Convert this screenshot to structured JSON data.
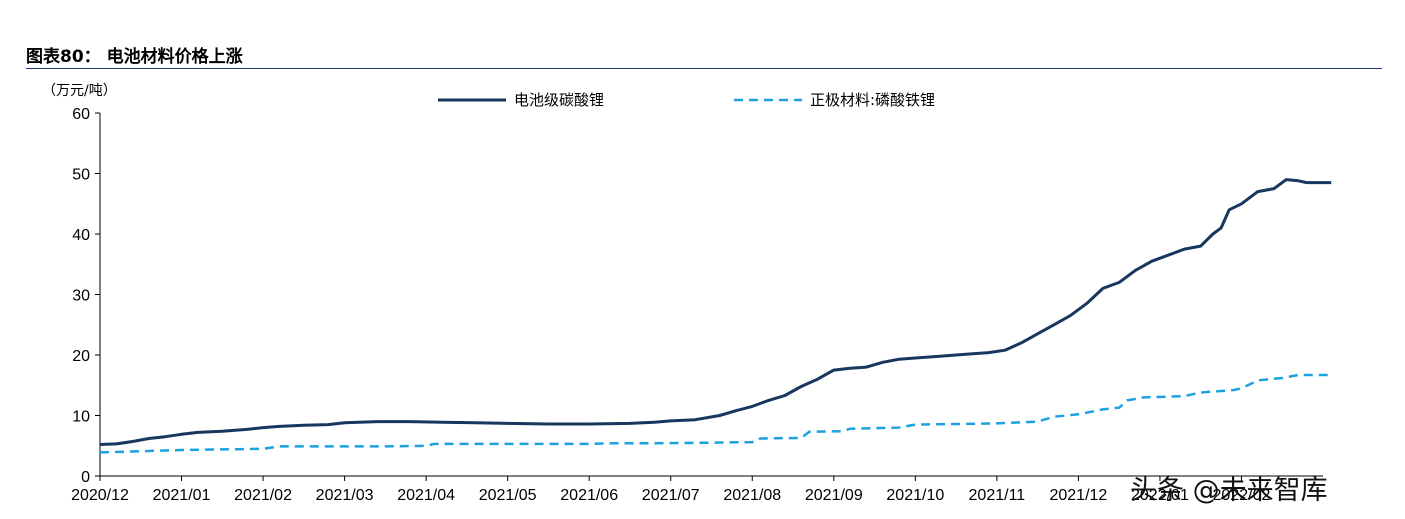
{
  "figure": {
    "title": "图表80：  电池材料价格上涨",
    "watermark": "头条 @未来智库"
  },
  "chart_data": {
    "type": "line",
    "ylabel": "（万元/吨）",
    "ylim": [
      0,
      60
    ],
    "yticks": [
      0,
      10,
      20,
      30,
      40,
      50,
      60
    ],
    "xlim": [
      0,
      15
    ],
    "x_tick_labels": [
      "2020/12",
      "2021/01",
      "2021/02",
      "2021/03",
      "2021/04",
      "2021/05",
      "2021/06",
      "2021/07",
      "2021/08",
      "2021/09",
      "2021/10",
      "2021/11",
      "2021/12",
      "2022/01",
      "2022/02"
    ],
    "legend_position": "top-center",
    "grid": false,
    "series": [
      {
        "name": "电池级碳酸锂",
        "color": "#17375e",
        "style": "solid",
        "points": [
          [
            0,
            5.2
          ],
          [
            0.2,
            5.3
          ],
          [
            0.4,
            5.7
          ],
          [
            0.6,
            6.2
          ],
          [
            0.8,
            6.5
          ],
          [
            1.0,
            6.9
          ],
          [
            1.2,
            7.2
          ],
          [
            1.5,
            7.4
          ],
          [
            1.8,
            7.7
          ],
          [
            2.0,
            8.0
          ],
          [
            2.2,
            8.2
          ],
          [
            2.5,
            8.4
          ],
          [
            2.8,
            8.5
          ],
          [
            3.0,
            8.8
          ],
          [
            3.4,
            9.0
          ],
          [
            3.8,
            9.0
          ],
          [
            4.2,
            8.9
          ],
          [
            4.6,
            8.8
          ],
          [
            5.0,
            8.7
          ],
          [
            5.5,
            8.6
          ],
          [
            6.0,
            8.6
          ],
          [
            6.5,
            8.7
          ],
          [
            6.8,
            8.9
          ],
          [
            7.0,
            9.1
          ],
          [
            7.3,
            9.3
          ],
          [
            7.6,
            10.0
          ],
          [
            7.8,
            10.8
          ],
          [
            8.0,
            11.5
          ],
          [
            8.2,
            12.5
          ],
          [
            8.4,
            13.3
          ],
          [
            8.6,
            14.8
          ],
          [
            8.8,
            16.0
          ],
          [
            9.0,
            17.5
          ],
          [
            9.2,
            17.8
          ],
          [
            9.4,
            18.0
          ],
          [
            9.6,
            18.8
          ],
          [
            9.8,
            19.3
          ],
          [
            10.0,
            19.5
          ],
          [
            10.3,
            19.8
          ],
          [
            10.6,
            20.1
          ],
          [
            10.9,
            20.4
          ],
          [
            11.1,
            20.8
          ],
          [
            11.3,
            22.0
          ],
          [
            11.5,
            23.5
          ],
          [
            11.7,
            25.0
          ],
          [
            11.9,
            26.5
          ],
          [
            12.1,
            28.5
          ],
          [
            12.3,
            31.0
          ],
          [
            12.5,
            32.0
          ],
          [
            12.7,
            34.0
          ],
          [
            12.9,
            35.5
          ],
          [
            13.1,
            36.5
          ],
          [
            13.3,
            37.5
          ],
          [
            13.5,
            38.0
          ],
          [
            13.65,
            40.0
          ],
          [
            13.75,
            41.0
          ],
          [
            13.85,
            44.0
          ],
          [
            14.0,
            45.0
          ],
          [
            14.2,
            47.0
          ],
          [
            14.4,
            47.5
          ],
          [
            14.55,
            49.0
          ],
          [
            14.7,
            48.8
          ],
          [
            14.8,
            48.5
          ],
          [
            15.1,
            48.5
          ]
        ]
      },
      {
        "name": "正极材料:磷酸铁锂",
        "color": "#1da1e0",
        "style": "dashed",
        "points": [
          [
            0,
            3.9
          ],
          [
            0.5,
            4.1
          ],
          [
            1.0,
            4.3
          ],
          [
            1.5,
            4.4
          ],
          [
            2.0,
            4.5
          ],
          [
            2.2,
            4.9
          ],
          [
            2.6,
            4.9
          ],
          [
            3.0,
            4.9
          ],
          [
            3.5,
            4.9
          ],
          [
            4.0,
            5.0
          ],
          [
            4.1,
            5.3
          ],
          [
            5.0,
            5.3
          ],
          [
            6.0,
            5.3
          ],
          [
            6.3,
            5.4
          ],
          [
            6.7,
            5.4
          ],
          [
            7.5,
            5.5
          ],
          [
            8.0,
            5.6
          ],
          [
            8.1,
            6.2
          ],
          [
            8.6,
            6.3
          ],
          [
            8.7,
            7.3
          ],
          [
            9.1,
            7.4
          ],
          [
            9.2,
            7.8
          ],
          [
            9.8,
            8.0
          ],
          [
            10.0,
            8.5
          ],
          [
            10.5,
            8.6
          ],
          [
            11.0,
            8.7
          ],
          [
            11.5,
            9.0
          ],
          [
            11.7,
            9.8
          ],
          [
            12.0,
            10.2
          ],
          [
            12.3,
            11.0
          ],
          [
            12.5,
            11.3
          ],
          [
            12.6,
            12.5
          ],
          [
            12.8,
            13.0
          ],
          [
            13.3,
            13.2
          ],
          [
            13.5,
            13.8
          ],
          [
            13.9,
            14.2
          ],
          [
            14.0,
            14.5
          ],
          [
            14.2,
            15.8
          ],
          [
            14.5,
            16.2
          ],
          [
            14.7,
            16.7
          ],
          [
            15.1,
            16.7
          ]
        ]
      }
    ]
  }
}
